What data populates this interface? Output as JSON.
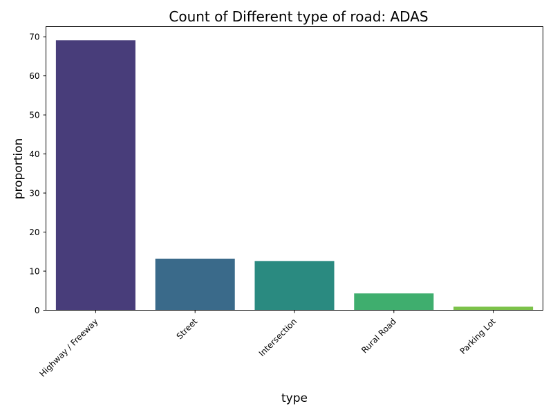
{
  "chart_data": {
    "type": "bar",
    "title": "Count of Different type of road: ADAS",
    "xlabel": "type",
    "ylabel": "proportion",
    "categories": [
      "Highway / Freeway",
      "Street",
      "Intersection",
      "Rural Road",
      "Parking Lot"
    ],
    "values": [
      69.1,
      13.2,
      12.6,
      4.3,
      0.9
    ],
    "colors": [
      "#483d7a",
      "#3a6a8a",
      "#2a8a80",
      "#3fae6e",
      "#7cc24a"
    ],
    "ylim": [
      0,
      72.6
    ],
    "yticks": [
      0,
      10,
      20,
      30,
      40,
      50,
      60,
      70
    ],
    "grid": false,
    "legend": "none"
  }
}
